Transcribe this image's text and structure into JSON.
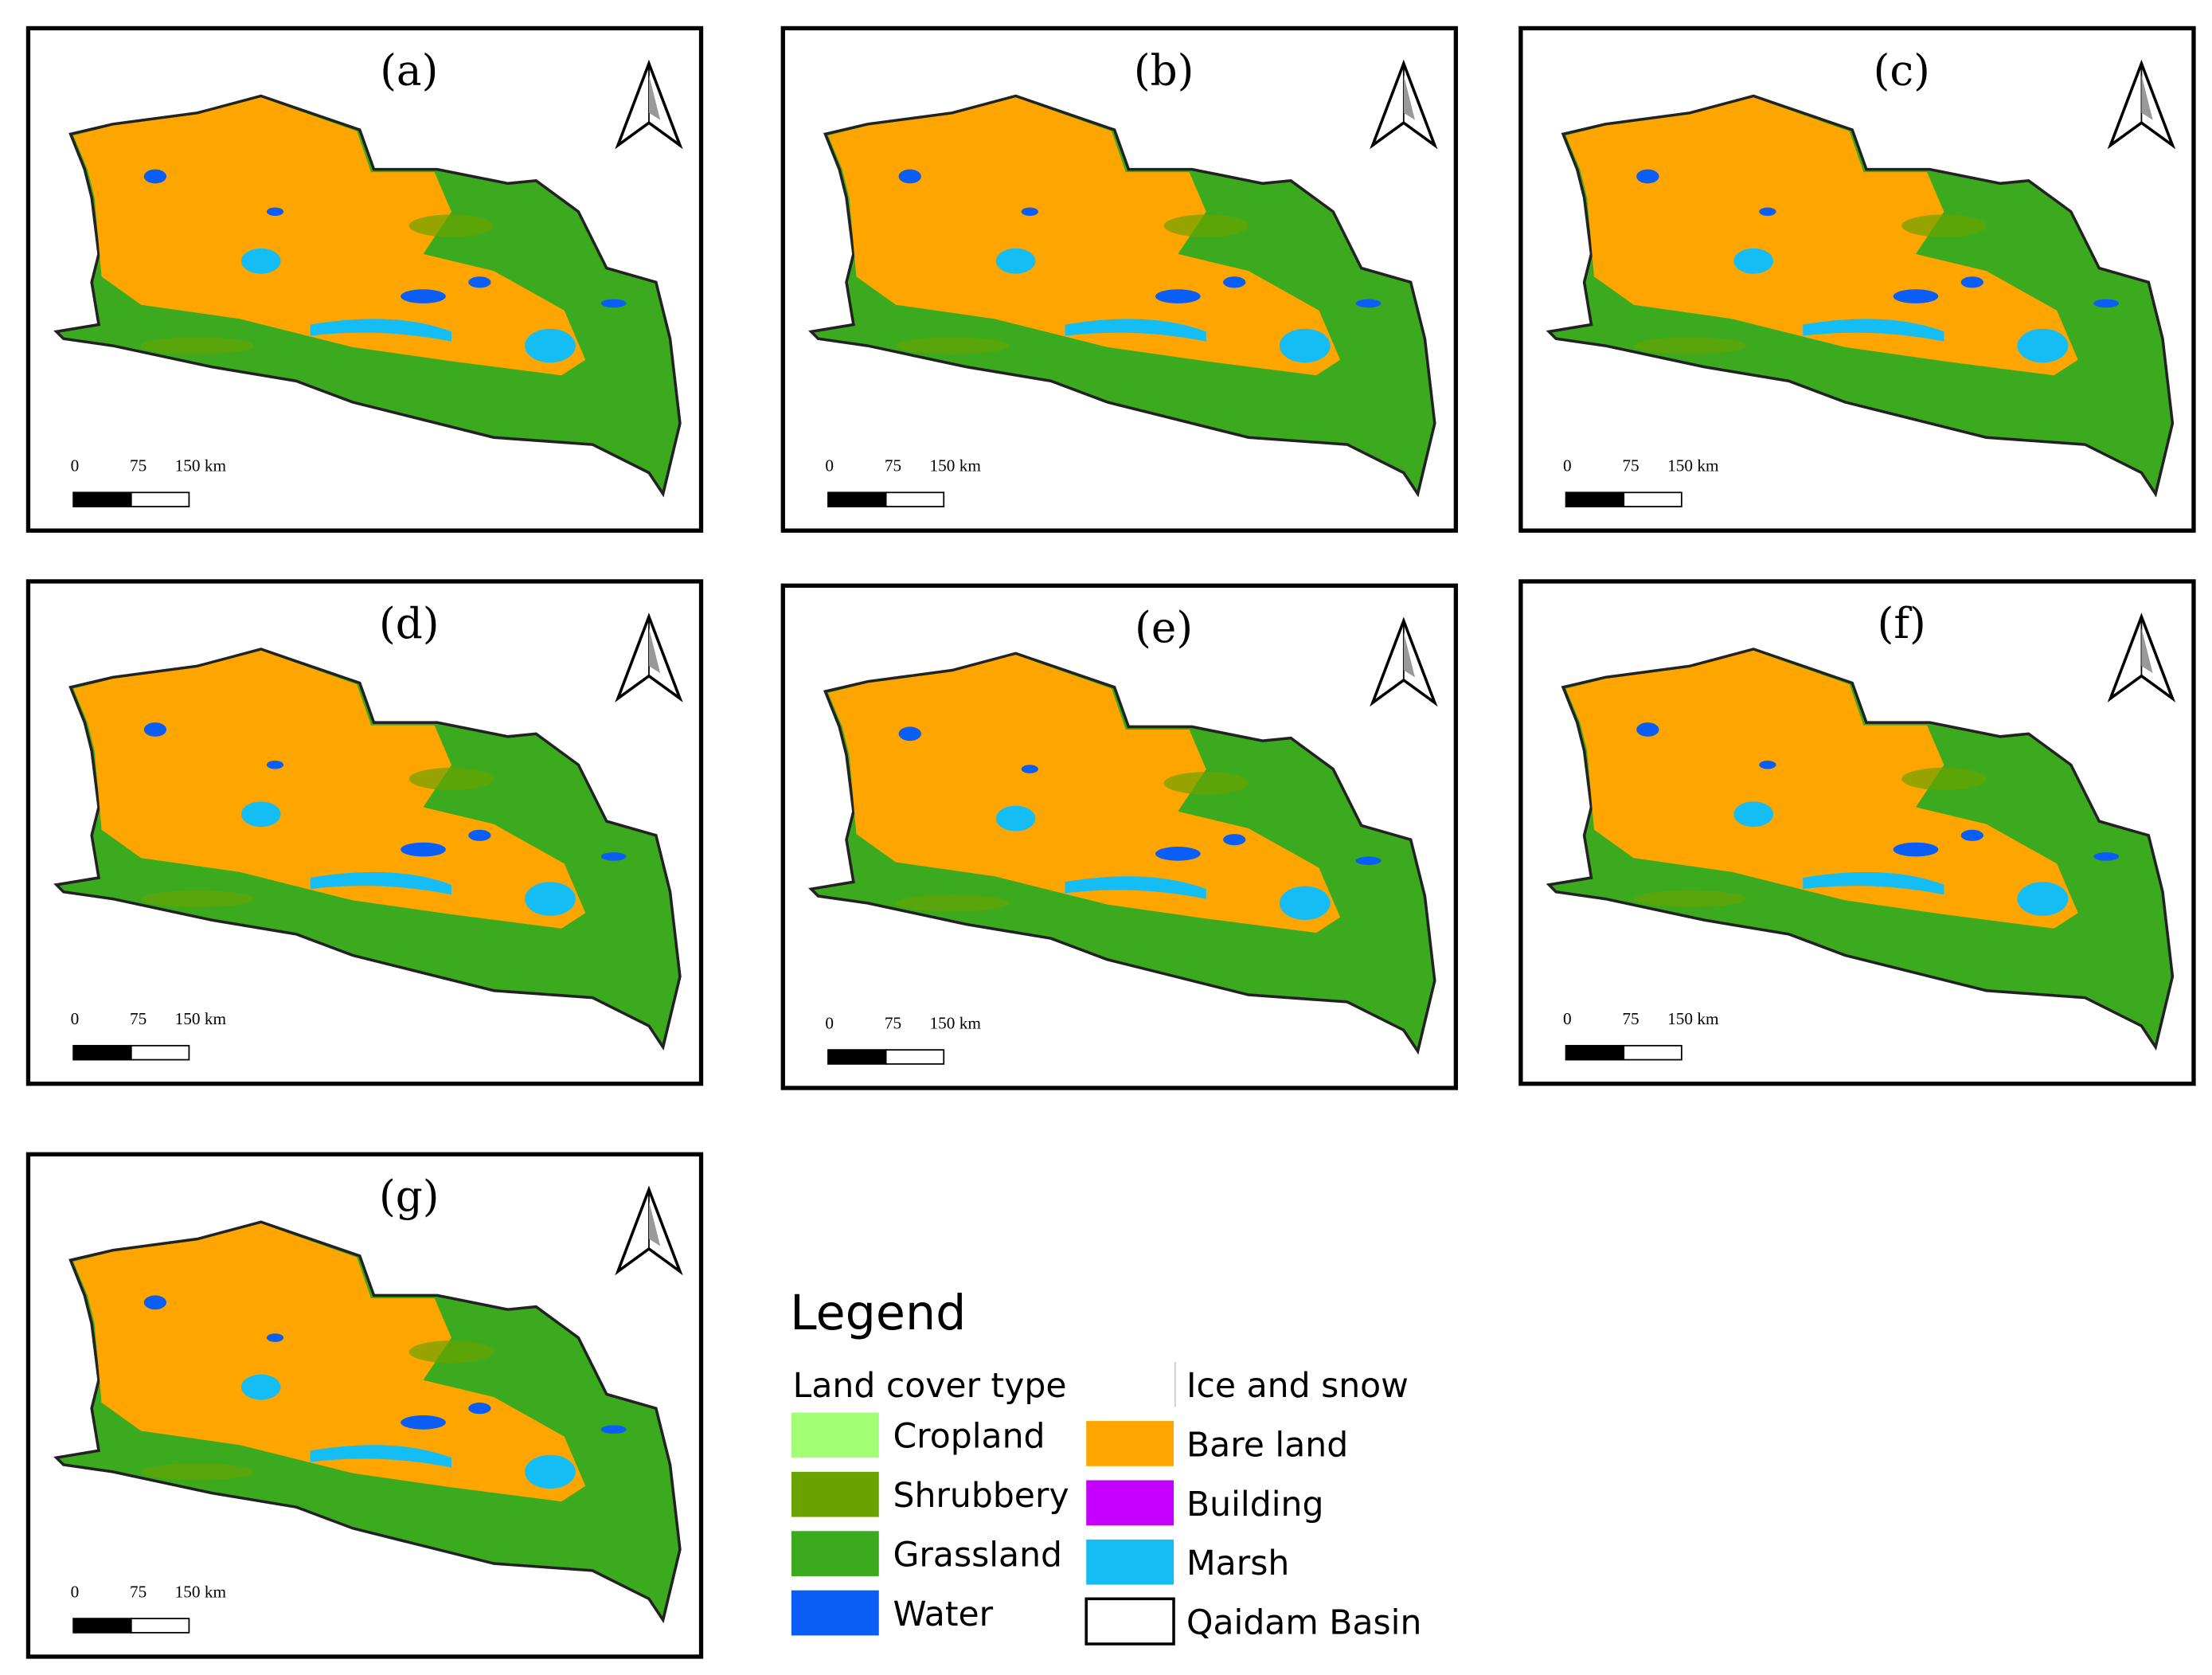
{
  "panels": [
    {
      "label": "(a)",
      "scale": [
        "0",
        "75",
        "150 km"
      ]
    },
    {
      "label": "(b)",
      "scale": [
        "0",
        "75",
        "150 km"
      ]
    },
    {
      "label": "(c)",
      "scale": [
        "0",
        "75",
        "150 km"
      ]
    },
    {
      "label": "(d)",
      "scale": [
        "0",
        "75",
        "150 km"
      ]
    },
    {
      "label": "(e)",
      "scale": [
        "0",
        "75",
        "150 km"
      ]
    },
    {
      "label": "(f)",
      "scale": [
        "0",
        "75",
        "150 km"
      ]
    },
    {
      "label": "(g)",
      "scale": [
        "0",
        "75",
        "150 km"
      ]
    }
  ],
  "legend": {
    "title": "Legend",
    "subtitle": "Land cover type",
    "items": [
      {
        "label": "Cropland",
        "color": "#a3ff73"
      },
      {
        "label": "Shrubbery",
        "color": "#6aa300"
      },
      {
        "label": "Grassland",
        "color": "#3caa1e"
      },
      {
        "label": "Water",
        "color": "#0a5ef5"
      },
      {
        "label": "Ice and snow",
        "color": "#ffffff"
      },
      {
        "label": "Bare land",
        "color": "#ffa500"
      },
      {
        "label": "Building",
        "color": "#c500ff"
      },
      {
        "label": "Marsh",
        "color": "#14bef5"
      },
      {
        "label": "Qaidam Basin",
        "color": "#ffffff",
        "border": "#000000"
      }
    ]
  }
}
